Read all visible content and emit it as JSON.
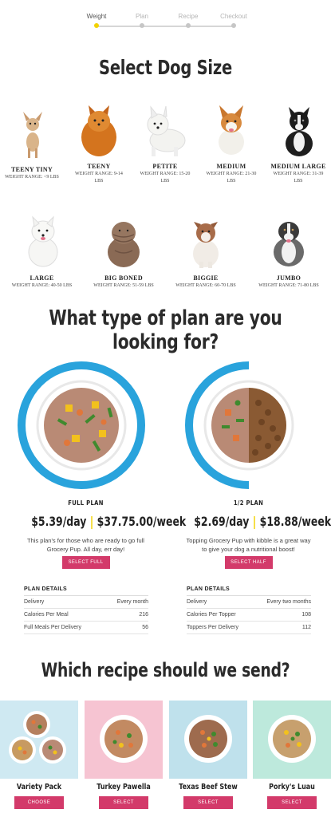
{
  "steps": [
    {
      "label": "Weight",
      "active": true
    },
    {
      "label": "Plan",
      "active": false
    },
    {
      "label": "Recipe",
      "active": false
    },
    {
      "label": "Checkout",
      "active": false
    }
  ],
  "size_section": {
    "title": "Select Dog Size",
    "dogs": [
      {
        "name": "TEENY TINY",
        "range_line1": "WEIGHT RANGE: <9 LBS",
        "range_line2": ""
      },
      {
        "name": "TEENY",
        "range_line1": "WEIGHT RANGE: 9-14",
        "range_line2": "LBS"
      },
      {
        "name": "PETITE",
        "range_line1": "WEIGHT RANGE: 15-20",
        "range_line2": "LBS"
      },
      {
        "name": "MEDIUM",
        "range_line1": "WEIGHT RANGE: 21-30",
        "range_line2": "LBS"
      },
      {
        "name": "MEDIUM LARGE",
        "range_line1": "WEIGHT RANGE: 31-39",
        "range_line2": "LBS"
      },
      {
        "name": "LARGE",
        "range_line1": "WEIGHT RANGE: 40-50 LBS",
        "range_line2": ""
      },
      {
        "name": "BIG BONED",
        "range_line1": "WEIGHT RANGE: 51-59 LBS",
        "range_line2": ""
      },
      {
        "name": "BIGGIE",
        "range_line1": "WEIGHT RANGE: 60-70 LBS",
        "range_line2": ""
      },
      {
        "name": "JUMBO",
        "range_line1": "WEIGHT RANGE: 71-80 LBS",
        "range_line2": ""
      }
    ]
  },
  "plan_section": {
    "title": "What type of plan are you looking for?",
    "plans": [
      {
        "name": "FULL PLAN",
        "price_day": "$5.39/day",
        "separator": "|",
        "price_week": "$37.75.00/week",
        "description": "This plan's for those who are ready to go full Grocery Pup. All day, err day!",
        "button": "SELECT FULL",
        "details_heading": "PLAN DETAILS",
        "details": [
          {
            "label": "Delivery",
            "value": "Every month"
          },
          {
            "label": "Calories Per Meal",
            "value": "216"
          },
          {
            "label": "Full Meals Per Delivery",
            "value": "56"
          }
        ]
      },
      {
        "name": "1/2 PLAN",
        "price_day": "$2.69/day",
        "separator": "|",
        "price_week": "$18.88/week",
        "description": "Topping Grocery Pup with kibble is a great way to give your dog a nutritional boost!",
        "button": "SELECT HALF",
        "details_heading": "PLAN DETAILS",
        "details": [
          {
            "label": "Delivery",
            "value": "Every two months"
          },
          {
            "label": "Calories Per Topper",
            "value": "108"
          },
          {
            "label": "Toppers Per Delivery",
            "value": "112"
          }
        ]
      }
    ]
  },
  "recipe_section": {
    "title": "Which recipe should we send?",
    "recipes": [
      {
        "name": "Variety Pack",
        "button": "CHOOSE",
        "bg": "#cfe9f2"
      },
      {
        "name": "Turkey Pawella",
        "button": "SELECT",
        "bg": "#f6c4d2"
      },
      {
        "name": "Texas Beef Stew",
        "button": "SELECT",
        "bg": "#bfe1ec"
      },
      {
        "name": "Porky's Luau",
        "button": "SELECT",
        "bg": "#bde9dc"
      }
    ]
  },
  "colors": {
    "accent": "#d33a6a",
    "step_active": "#f2d200",
    "ring": "#29a3dc"
  }
}
